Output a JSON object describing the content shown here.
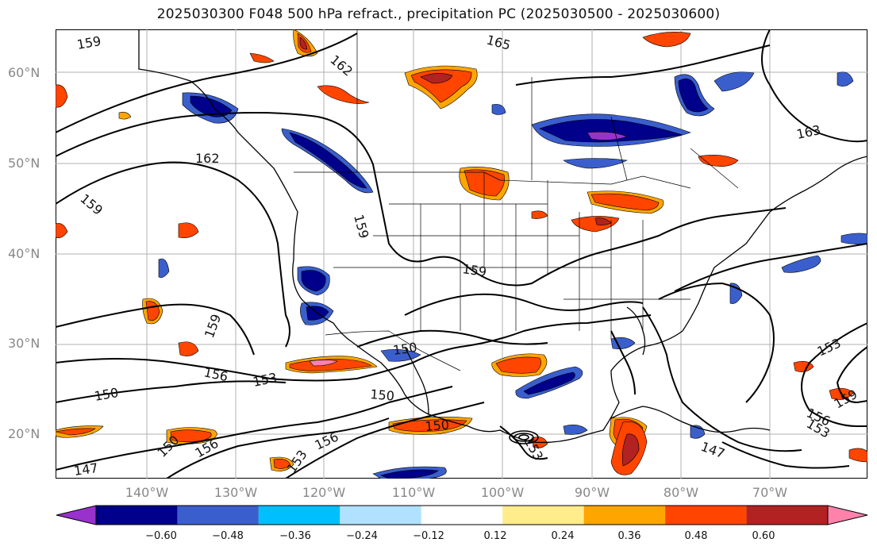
{
  "title": "2025030300 F048 500 hPa refract., precipitation PC (2025030500 - 2025030600)",
  "lat_labels": [
    "60°N",
    "50°N",
    "40°N",
    "30°N",
    "20°N"
  ],
  "lon_labels": [
    "140°W",
    "130°W",
    "120°W",
    "110°W",
    "100°W",
    "90°W",
    "80°W",
    "70°W"
  ],
  "contour_labels": [
    "159",
    "165",
    "162",
    "162",
    "163",
    "159",
    "159",
    "159",
    "159",
    "156",
    "153",
    "150",
    "150",
    "150",
    "153",
    "156",
    "150",
    "150",
    "156",
    "153",
    "147",
    "147",
    "153",
    "156",
    "153",
    "159"
  ],
  "colorbar": {
    "ticks": [
      "−0.60",
      "−0.48",
      "−0.36",
      "−0.24",
      "−0.12",
      "0.12",
      "0.24",
      "0.36",
      "0.48",
      "0.60"
    ],
    "colors": [
      "#9932cc",
      "#00008b",
      "#3a5fcd",
      "#00bfff",
      "#b0e2ff",
      "#ffffff",
      "#ffec8b",
      "#ffa500",
      "#ff4500",
      "#b22222",
      "#ff82ab"
    ]
  }
}
